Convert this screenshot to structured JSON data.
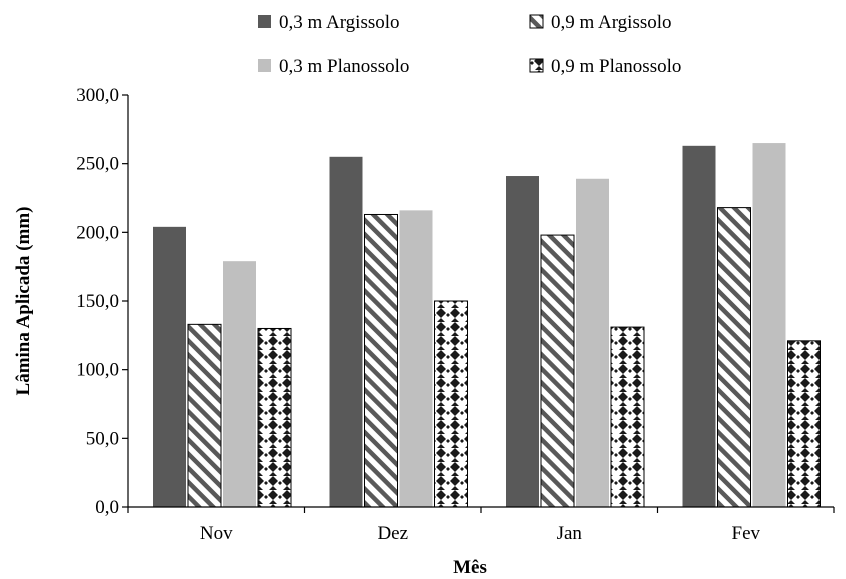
{
  "chart_data": {
    "type": "bar",
    "title": "",
    "xlabel": "Mês",
    "ylabel": "Lâmina Aplicada  (mm)",
    "categories": [
      "Nov",
      "Dez",
      "Jan",
      "Fev"
    ],
    "ylim": [
      0,
      300
    ],
    "yticks": [
      "0,0",
      "50,0",
      "100,0",
      "150,0",
      "200,0",
      "250,0",
      "300,0"
    ],
    "grid": false,
    "legend_position": "top",
    "series": [
      {
        "name": "0,3 m Argissolo",
        "values": [
          204,
          255,
          241,
          263
        ],
        "color": "#595959",
        "pattern": "solid"
      },
      {
        "name": "0,9 m Argissolo",
        "values": [
          133,
          213,
          198,
          218
        ],
        "color": "#595959",
        "pattern": "diagonal"
      },
      {
        "name": "0,3 m Planossolo",
        "values": [
          179,
          216,
          239,
          265
        ],
        "color": "#bfbfbf",
        "pattern": "solid"
      },
      {
        "name": "0,9 m Planossolo",
        "values": [
          130,
          150,
          131,
          121
        ],
        "color": "#1a1a1a",
        "pattern": "checker"
      }
    ]
  }
}
